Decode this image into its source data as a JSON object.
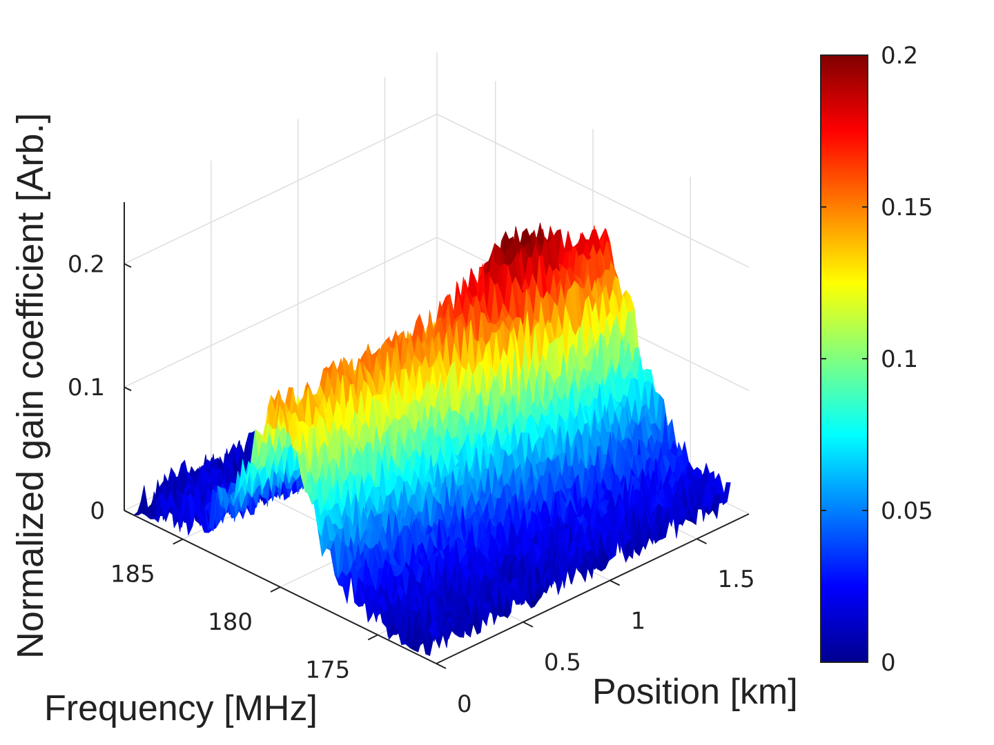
{
  "chart_data": {
    "type": "surface3d",
    "zlabel": "Normalized gain coefficient [Arb.]",
    "xlabel": "Frequency [MHz]",
    "ylabel": "Position [km]",
    "frequency_ticks": [
      "185",
      "180",
      "175"
    ],
    "position_ticks": [
      "0",
      "0.5",
      "1",
      "1.5"
    ],
    "z_ticks": [
      "0",
      "0.1",
      "0.2"
    ],
    "frequency_range_mhz": [
      172,
      188
    ],
    "position_range_km": [
      0,
      1.8
    ],
    "z_range": [
      0,
      0.25
    ],
    "colorbar": {
      "ticks": [
        "0",
        "0.05",
        "0.1",
        "0.15",
        "0.2"
      ],
      "range": [
        0,
        0.2
      ],
      "colormap": "jet"
    },
    "surface_model": {
      "description_of_peak_ridge": "ridge along frequency, centered near 180 MHz, peak amplitude near 0.2 at far position",
      "ridge": [
        {
          "frequency": 185.0,
          "position": 0.0,
          "gain": 0.01
        },
        {
          "frequency": 182.5,
          "position": 0.0,
          "gain": 0.04
        },
        {
          "frequency": 181.0,
          "position": 0.0,
          "gain": 0.12
        },
        {
          "frequency": 180.0,
          "position": 0.0,
          "gain": 0.16
        },
        {
          "frequency": 179.0,
          "position": 0.3,
          "gain": 0.15
        },
        {
          "frequency": 179.0,
          "position": 0.9,
          "gain": 0.17
        },
        {
          "frequency": 179.0,
          "position": 1.3,
          "gain": 0.2
        },
        {
          "frequency": 179.0,
          "position": 1.8,
          "gain": 0.08
        },
        {
          "frequency": 175.0,
          "position": 0.0,
          "gain": 0.05
        },
        {
          "frequency": 173.0,
          "position": 1.8,
          "gain": 0.01
        }
      ]
    },
    "grid": true
  },
  "colors": {
    "axis": "#222222",
    "grid": "#dddddd"
  }
}
